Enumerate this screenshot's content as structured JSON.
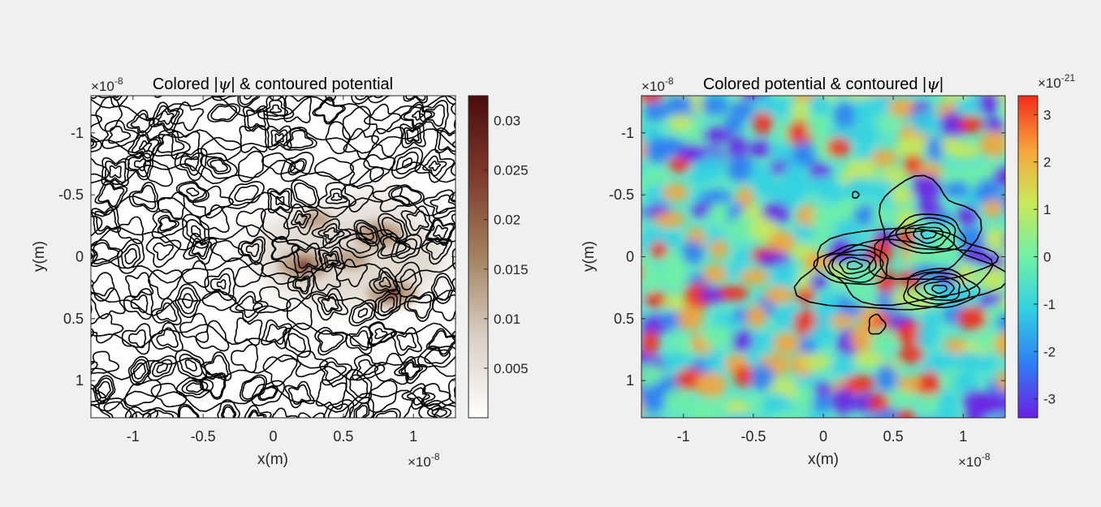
{
  "chart_data": [
    {
      "type": "heatmap",
      "title_before": "Colored |",
      "title_symbol": "ψ",
      "title_after": "| & contoured potential",
      "xlabel": "x(m)",
      "ylabel": "y(m)",
      "x_scale_base": "×10",
      "x_scale_exp": "-8",
      "y_scale_base": "×10",
      "y_scale_exp": "-8",
      "xlim": [
        -1.3,
        1.3
      ],
      "ylim": [
        -1.3,
        1.3
      ],
      "y_reversed": true,
      "xticks": [
        -1,
        -0.5,
        0,
        0.5,
        1
      ],
      "xtick_labels": [
        "-1",
        "-0.5",
        "0",
        "0.5",
        "1"
      ],
      "yticks": [
        -1,
        -0.5,
        0,
        0.5,
        1
      ],
      "ytick_labels": [
        "-1",
        "-0.5",
        "0",
        "0.5",
        "1"
      ],
      "colormap": "white-to-dark-red",
      "colormap_colors": [
        "#ffffff",
        "#d9d0c6",
        "#a3825f",
        "#7e3a2c",
        "#4a0c0c"
      ],
      "clim": [
        0,
        0.0325
      ],
      "colorbar_ticks": [
        0.005,
        0.01,
        0.015,
        0.02,
        0.025,
        0.03
      ],
      "colorbar_tick_labels": [
        "0.005",
        "0.01",
        "0.015",
        "0.02",
        "0.025",
        "0.03"
      ],
      "colorbar_label": "",
      "contours": "potential (dense black contours over full domain)",
      "peaks": [
        {
          "x": 0.22,
          "y": 0.07,
          "value": 0.028
        },
        {
          "x": 0.75,
          "y": -0.18,
          "value": 0.026
        },
        {
          "x": 0.85,
          "y": 0.3,
          "value": 0.027
        },
        {
          "x": 0.55,
          "y": 0.02,
          "value": 0.014
        },
        {
          "x": 0.3,
          "y": -0.3,
          "value": 0.01
        }
      ]
    },
    {
      "type": "heatmap",
      "title_before": "Colored potential & contoured |",
      "title_symbol": "ψ",
      "title_after": "|",
      "xlabel": "x(m)",
      "ylabel": "y(m)",
      "x_scale_base": "×10",
      "x_scale_exp": "-8",
      "y_scale_base": "×10",
      "y_scale_exp": "-8",
      "xlim": [
        -1.3,
        1.3
      ],
      "ylim": [
        -1.3,
        1.3
      ],
      "y_reversed": true,
      "xticks": [
        -1,
        -0.5,
        0,
        0.5,
        1
      ],
      "xtick_labels": [
        "-1",
        "-0.5",
        "0",
        "0.5",
        "1"
      ],
      "yticks": [
        -1,
        -0.5,
        0,
        0.5,
        1
      ],
      "ytick_labels": [
        "-1",
        "-0.5",
        "0",
        "0.5",
        "1"
      ],
      "colormap": "jet-like",
      "colormap_colors": [
        "#6a1fe6",
        "#2f7df2",
        "#31d0e3",
        "#6ff0a5",
        "#c9e95a",
        "#f6a43c",
        "#f42a17"
      ],
      "clim": [
        -3.4,
        3.4
      ],
      "colorbar_scale_base": "×10",
      "colorbar_scale_exp": "-21",
      "colorbar_ticks": [
        -3,
        -2,
        -1,
        0,
        1,
        2,
        3
      ],
      "colorbar_tick_labels": [
        "-3",
        "-2",
        "-1",
        "0",
        "1",
        "2",
        "3"
      ],
      "colorbar_label": "",
      "contours": "|psi| (black contours around peaks)",
      "contour_centers": [
        {
          "x": 0.22,
          "y": 0.07
        },
        {
          "x": 0.75,
          "y": -0.18
        },
        {
          "x": 0.83,
          "y": 0.26
        }
      ]
    }
  ]
}
